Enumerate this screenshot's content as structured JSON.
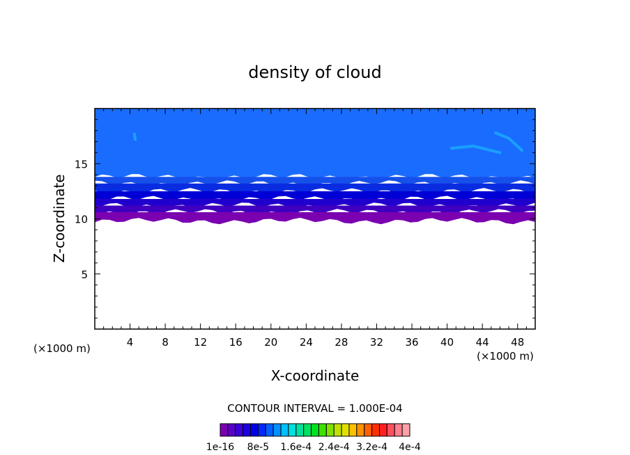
{
  "chart_data": {
    "type": "heatmap",
    "title": "density of cloud",
    "xlabel": "X-coordinate",
    "ylabel": "Z-coordinate",
    "x_unit": "(×1000 m)",
    "z_unit": "(×1000 m)",
    "xlim": [
      0,
      50
    ],
    "ylim": [
      0,
      20
    ],
    "x_ticks": [
      4,
      8,
      12,
      16,
      20,
      24,
      28,
      32,
      36,
      40,
      44,
      48
    ],
    "y_ticks": [
      5,
      10,
      15
    ],
    "contour_interval_text": "CONTOUR INTERVAL = 1.000E-04",
    "colorbar": {
      "labels": [
        "1e-16",
        "8e-5",
        "1.6e-4",
        "2.4e-4",
        "3.2e-4",
        "4e-4"
      ],
      "colors": [
        "#7b00b0",
        "#5a00c8",
        "#3c00d8",
        "#1e00e0",
        "#0000e8",
        "#0028ff",
        "#0060ff",
        "#0090ff",
        "#00c0ff",
        "#00e0e0",
        "#00e0a0",
        "#00e060",
        "#00e020",
        "#40e000",
        "#80e000",
        "#c0e000",
        "#e0e000",
        "#ffc000",
        "#ff9000",
        "#ff6000",
        "#ff3000",
        "#ff2020",
        "#ff5060",
        "#ff8090",
        "#ffa0a8"
      ]
    },
    "bands": [
      {
        "z_bottom": 13.8,
        "z_top": 20,
        "color": "#1a6cff"
      },
      {
        "z_bottom": 13.2,
        "z_top": 13.8,
        "color": "#1650ea"
      },
      {
        "z_bottom": 12.5,
        "z_top": 13.2,
        "color": "#0a2ce0"
      },
      {
        "z_bottom": 11.8,
        "z_top": 12.5,
        "color": "#0000d6"
      },
      {
        "z_bottom": 11.2,
        "z_top": 11.8,
        "color": "#2000cc"
      },
      {
        "z_bottom": 10.6,
        "z_top": 11.2,
        "color": "#4000c0"
      },
      {
        "z_bottom": 9.8,
        "z_top": 10.6,
        "color": "#7a00b0"
      }
    ],
    "patches": [
      {
        "x": [
          40.5,
          43.0,
          46.0
        ],
        "z": [
          16.4,
          16.6,
          16.0
        ],
        "color": "#1aa0ff"
      },
      {
        "x": [
          45.5,
          47.0,
          48.5
        ],
        "z": [
          17.8,
          17.3,
          16.2
        ],
        "color": "#1aa0ff"
      },
      {
        "x": [
          4.5,
          4.6
        ],
        "z": [
          17.7,
          17.2
        ],
        "color": "#1aa0ff"
      }
    ]
  }
}
